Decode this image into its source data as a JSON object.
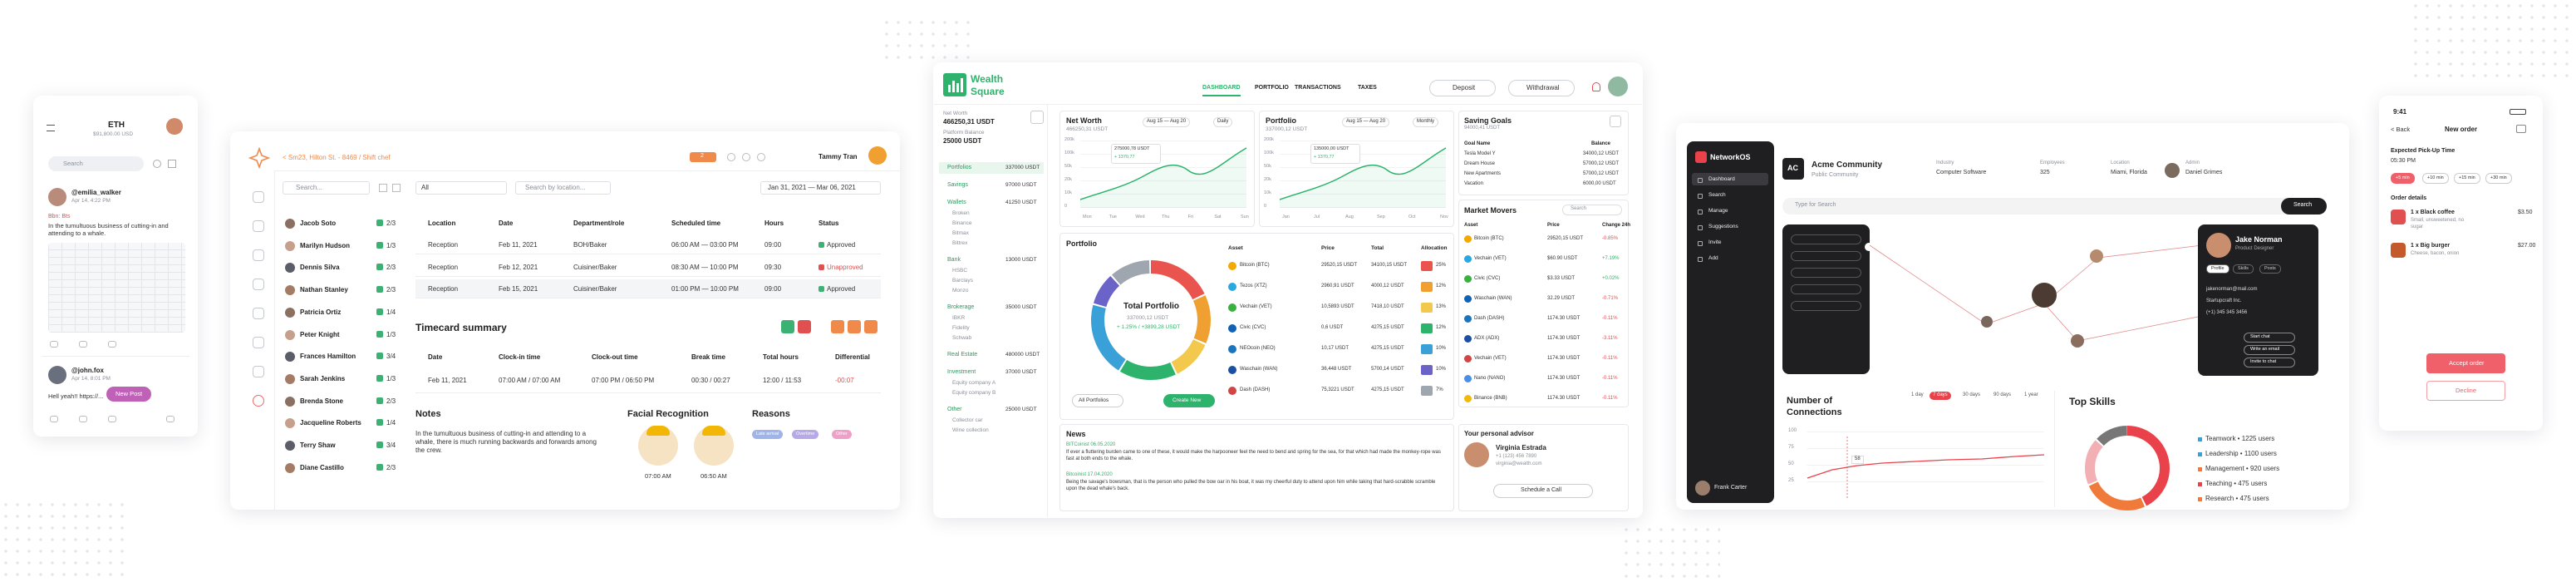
{
  "social": {
    "coin": "ETH",
    "coin_value": "$91,800.00 USD",
    "search": "Search",
    "posts": [
      {
        "user": "@emilia_walker",
        "time": "Apr 14, 4:22 PM",
        "tag": "Bbn: Bts",
        "text": "In the tumultuous business of cutting-in and attending to a whale."
      },
      {
        "user": "@john.fox",
        "time": "Apr 14, 8:01 PM",
        "text": "Hell yeah!! https://..."
      }
    ],
    "new_post": "New Post"
  },
  "timecard": {
    "breadcrumb": "< Sm23, Hilton St. - 8469 / Shift chef",
    "badge": "2",
    "user": "Tammy Tran",
    "search": "Search...",
    "filter": "All",
    "location_search": "Search by location...",
    "date_range": "Jan 31, 2021 — Mar 06, 2021",
    "employees": [
      {
        "name": "Jacob Soto",
        "count": "2/3"
      },
      {
        "name": "Marilyn Hudson",
        "count": "1/3"
      },
      {
        "name": "Dennis Silva",
        "count": "2/3"
      },
      {
        "name": "Nathan Stanley",
        "count": "2/3"
      },
      {
        "name": "Patricia Ortiz",
        "count": "1/4"
      },
      {
        "name": "Peter Knight",
        "count": "1/3"
      },
      {
        "name": "Frances Hamilton",
        "count": "3/4"
      },
      {
        "name": "Sarah Jenkins",
        "count": "1/3"
      },
      {
        "name": "Brenda Stone",
        "count": "2/3"
      },
      {
        "name": "Jacqueline Roberts",
        "count": "1/4"
      },
      {
        "name": "Terry Shaw",
        "count": "3/4"
      },
      {
        "name": "Diane Castillo",
        "count": "2/3"
      }
    ],
    "columns": [
      "Location",
      "Date",
      "Department/role",
      "Scheduled time",
      "Hours",
      "Status"
    ],
    "rows": [
      [
        "Reception",
        "Feb 11, 2021",
        "BOH/Baker",
        "06:00 AM — 03:00 PM",
        "09:00",
        "Approved"
      ],
      [
        "Reception",
        "Feb 12, 2021",
        "Cuisiner/Baker",
        "08:30 AM — 10:00 PM",
        "09:30",
        "Unapproved"
      ],
      [
        "Reception",
        "Feb 15, 2021",
        "Cuisiner/Baker",
        "01:00 PM — 10:00 PM",
        "09:00",
        "Approved"
      ]
    ],
    "summary": {
      "title": "Timecard summary",
      "columns": [
        "Date",
        "Clock-in time",
        "Clock-out time",
        "Break time",
        "Total hours",
        "Differential"
      ],
      "row": [
        "Feb 11, 2021",
        "07:00 AM / 07:00 AM",
        "07:00 PM / 06:50 PM",
        "00:30 / 00:27",
        "12:00 / 11:53",
        "-00:07"
      ]
    },
    "notes": {
      "title": "Notes",
      "text": "In the tumultuous business of cutting-in and attending to a whale, there is much running backwards and forwards among the crew."
    },
    "facial": {
      "title": "Facial Recognition",
      "times": [
        "07:00 AM",
        "06:50 AM"
      ]
    },
    "reasons": {
      "title": "Reasons",
      "tags": [
        "Late arrival",
        "Overtime",
        "Other"
      ]
    }
  },
  "wealth": {
    "brand": "Wealth Square",
    "net_worth_label": "Net Worth",
    "net_worth": "466250,31 USDT",
    "balance_label": "Platform Balance",
    "balance": "25000 USDT",
    "nav": [
      "DASHBOARD",
      "PORTFOLIO",
      "TRANSACTIONS",
      "TAXES"
    ],
    "deposit": "Deposit",
    "withdrawal": "Withdrawal",
    "sidebar": [
      {
        "name": "Portfolios",
        "value": "337000 USDT"
      },
      {
        "name": "Savings",
        "value": "97000 USDT"
      },
      {
        "name": "Wallets",
        "value": "41250 USDT",
        "items": [
          "Broken",
          "Binance",
          "Bitmax",
          "Bittrex"
        ]
      },
      {
        "name": "Bank",
        "value": "13000 USDT",
        "items": [
          "HSBC",
          "Barclays",
          "Monzo"
        ]
      },
      {
        "name": "Brokerage",
        "value": "35000 USDT",
        "items": [
          "IBKR",
          "Fidelity",
          "Schwab"
        ]
      },
      {
        "name": "Real Estate",
        "value": "480000 USDT"
      },
      {
        "name": "Investment",
        "value": "37000 USDT",
        "items": [
          "Equity company A",
          "Equity company B"
        ]
      },
      {
        "name": "Other",
        "value": "25000 USDT",
        "items": [
          "Collector car",
          "Wine collection"
        ]
      }
    ],
    "net_worth_card": {
      "title": "Net Worth",
      "value": "466250,31 USDT",
      "range": "Aug 15 — Aug 20",
      "period": "Daily",
      "tooltip": "275000,78 USDT",
      "tooltip_sub": "+ 1370,77",
      "x": [
        "Mon",
        "Tue",
        "Wed",
        "Thu",
        "Fri",
        "Sat",
        "Sun"
      ],
      "y": [
        "200k",
        "100k",
        "50k",
        "20k",
        "10k",
        "0"
      ]
    },
    "portfolio_card": {
      "title": "Portfolio",
      "value": "337000,12 USDT",
      "range": "Aug 15 — Aug 20",
      "period": "Monthly",
      "tooltip": "135000,00 USDT",
      "tooltip_sub": "+ 1370,77",
      "x": [
        "Jan",
        "Jul",
        "Aug",
        "Sep",
        "Oct",
        "Nov"
      ],
      "y": [
        "200k",
        "100k",
        "50k",
        "20k",
        "10k",
        "0"
      ]
    },
    "goals": {
      "title": "Saving Goals",
      "subtitle": "94000,41 USDT",
      "columns": [
        "Goal Name",
        "Balance"
      ],
      "rows": [
        [
          "Tesla Model Y",
          "34000,12 USDT"
        ],
        [
          "Dream House",
          "57000,12 USDT"
        ],
        [
          "New Apartments",
          "57000,12 USDT"
        ],
        [
          "Vacation",
          "6000,00 USDT"
        ]
      ]
    },
    "movers": {
      "title": "Market Movers",
      "search": "Search",
      "columns": [
        "Asset",
        "Price",
        "Change 24h"
      ],
      "rows": [
        [
          "Bitcoin (BTC)",
          "29520,15 USDT",
          "-0.85%"
        ],
        [
          "Vechain (VET)",
          "$60.90 USDT",
          "+7.19%"
        ],
        [
          "Civic (CVC)",
          "$3.33 USDT",
          "+0.02%"
        ],
        [
          "Waschain (WAN)",
          "32.29 USDT",
          "-0.71%"
        ],
        [
          "Dash (DASH)",
          "1174.30 USDT",
          "-0.11%"
        ],
        [
          "ADX (ADX)",
          "1174.30 USDT",
          "-3.11%"
        ],
        [
          "Vechain (VET)",
          "1174.30 USDT",
          "-0.11%"
        ],
        [
          "Nano (NANO)",
          "1174.30 USDT",
          "-0.11%"
        ],
        [
          "Binance (BNB)",
          "1174.30 USDT",
          "-0.11%"
        ]
      ]
    },
    "portfolio": {
      "title": "Portfolio",
      "total_label": "Total Portfolio",
      "total": "337000,12 USDT",
      "change": "+ 1.25% / +3899,28 USDT",
      "all": "All Portfolios",
      "create": "Create New",
      "columns": [
        "Asset",
        "Price",
        "Total",
        "Allocation"
      ],
      "rows": [
        [
          "Bitcoin (BTC)",
          "29520,15 USDT",
          "34100,15 USDT",
          "25%"
        ],
        [
          "Tezos (XTZ)",
          "2960,91 USDT",
          "4000,12 USDT",
          "12%"
        ],
        [
          "Vechain (VET)",
          "10,5893 USDT",
          "7418,10 USDT",
          "13%"
        ],
        [
          "Civic (CVC)",
          "0,6 USDT",
          "4275,15 USDT",
          "12%"
        ],
        [
          "NEOcoin (NEO)",
          "10,17 USDT",
          "4275,15 USDT",
          "10%"
        ],
        [
          "Waschain (WAN)",
          "36,448 USDT",
          "5700,14 USDT",
          "10%"
        ],
        [
          "Dash (DASH)",
          "75,3221 USDT",
          "4275,15 USDT",
          "7%"
        ]
      ]
    },
    "news": {
      "title": "News",
      "items": [
        {
          "source": "BITCoinist 06.05.2020",
          "text": "If ever a fluttering burden came to one of these, it would make the harpooneer feel the need to bend and spring for the sea, for that which had made the monkey-rope was fast at both ends to the whale."
        },
        {
          "source": "Bitcoinist 17.04.2020",
          "text": "Being the savage's bowsman, that is the person who pulled the bow oar in his boat, it was my cheerful duty to attend upon him while taking that hard-scrabble scramble upon the dead whale's back."
        }
      ]
    },
    "advisor": {
      "title": "Your personal advisor",
      "name": "Virginia Estrada",
      "phone": "+1 (123) 456 7890",
      "email": "virginia@wealth.com",
      "button": "Schedule a Call"
    }
  },
  "network": {
    "brand": "NetworkOS",
    "menu": [
      "Dashboard",
      "Search",
      "Manage",
      "Suggestions",
      "Invite",
      "Add"
    ],
    "user": "Frank Carter",
    "initials": "AC",
    "community": "Acme Community",
    "community_type": "Public Community",
    "fields": [
      {
        "label": "Industry",
        "value": "Computer Software"
      },
      {
        "label": "Employees",
        "value": "325"
      },
      {
        "label": "Location",
        "value": "Miami, Florida"
      },
      {
        "label": "Admin",
        "value": "Daniel Grimes"
      }
    ],
    "search": "Type for Search",
    "search_button": "Search",
    "profile": {
      "name": "Jake Norman",
      "role": "Product Designer",
      "tabs": [
        "Profile",
        "Skills",
        "Posts"
      ],
      "details": [
        "jakenorman@mail.com",
        "Startupcraft Inc.",
        "(+1) 345 345 3456"
      ],
      "buttons": [
        "Start chat",
        "Write an email",
        "Invite to chat"
      ]
    },
    "connections": {
      "title": "Number of Connections",
      "ranges": [
        "1 day",
        "7 days",
        "30 days",
        "90 days",
        "1 year"
      ],
      "y": [
        "100",
        "75",
        "50",
        "25"
      ],
      "marker": "58"
    },
    "skills": {
      "title": "Top Skills",
      "items": [
        "Teamwork • 1225 users",
        "Leadership • 1100 users",
        "Management • 920 users",
        "Teaching • 475 users",
        "Research • 475 users"
      ]
    }
  },
  "order": {
    "time": "9:41",
    "back": "< Back",
    "title": "New order",
    "pickup_label": "Expected Pick-Up Time",
    "pickup": "05:30 PM",
    "options": [
      "+5 min",
      "+10 min",
      "+15 min",
      "+30 min"
    ],
    "details_title": "Order details",
    "items": [
      {
        "name": "1 x Black coffee",
        "notes": "Small, unsweetened, no sugar",
        "price": "$3.50"
      },
      {
        "name": "1 x Big burger",
        "notes": "Cheese, bacon, onion",
        "price": "$27.00"
      }
    ],
    "accept": "Accept order",
    "decline": "Decline"
  }
}
